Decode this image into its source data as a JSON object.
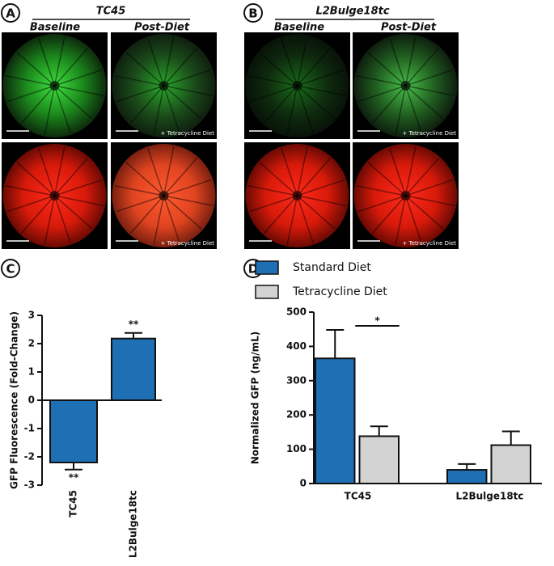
{
  "image_panels": [
    {
      "letter": "A",
      "title": "TC45",
      "columns": [
        "Baseline",
        "Post-Diet"
      ],
      "overlay": "+ Tetracycline Diet"
    },
    {
      "letter": "B",
      "title": "L2Bulge18tc",
      "columns": [
        "Baseline",
        "Post-Diet"
      ],
      "overlay": "+ Tetracycline Diet"
    }
  ],
  "chart_data": [
    {
      "type": "bar",
      "panel": "C",
      "ylabel": "GFP Fluorescence (Fold-Change)",
      "categories": [
        "TC45",
        "L2Bulge18tc"
      ],
      "values": [
        -2.2,
        2.18
      ],
      "errors": [
        0.25,
        0.2
      ],
      "annotations": [
        "**",
        "**"
      ],
      "color": "#1f6fb4",
      "ylim": [
        -3,
        3
      ],
      "yticks": [
        -3,
        -2,
        -1,
        0,
        1,
        2,
        3
      ]
    },
    {
      "type": "bar",
      "panel": "D",
      "ylabel": "Normalized GFP (ng/mL)",
      "categories": [
        "TC45",
        "L2Bulge18tc"
      ],
      "series": [
        {
          "name": "Standard Diet",
          "color": "#1f6fb4",
          "values": [
            365,
            40
          ],
          "errors": [
            83,
            17
          ]
        },
        {
          "name": "Tetracycline Diet",
          "color": "#d3d3d3",
          "values": [
            138,
            112
          ],
          "errors": [
            29,
            40
          ]
        }
      ],
      "significance": "*",
      "ylim": [
        0,
        500
      ],
      "yticks": [
        0,
        100,
        200,
        300,
        400,
        500
      ]
    }
  ]
}
